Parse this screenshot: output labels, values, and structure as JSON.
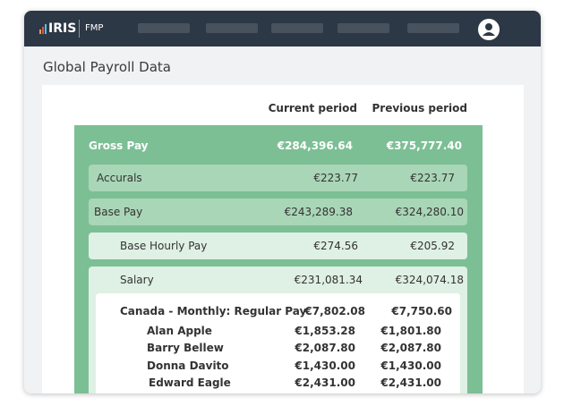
{
  "header": {
    "logo": "IRIS",
    "product": "FMP"
  },
  "page": {
    "title": "Global Payroll Data"
  },
  "table": {
    "columns": [
      "Current period",
      "Previous period"
    ],
    "rows": [
      {
        "label": "Gross Pay",
        "current": "€284,396.64",
        "previous": "€375,777.40"
      },
      {
        "label": "Accurals",
        "current": "€223.77",
        "previous": "€223.77"
      },
      {
        "label": "Base Pay",
        "current": "€243,289.38",
        "previous": "€324,280.10"
      },
      {
        "label": "Base Hourly Pay",
        "current": "€274.56",
        "previous": "€205.92"
      },
      {
        "label": "Salary",
        "current": "€231,081.34",
        "previous": "€324,074.18"
      },
      {
        "label": "Canada - Monthly: Regular Pay",
        "current": "€7,802.08",
        "previous": "€7,750.60"
      },
      {
        "label": "Alan Apple",
        "current": "€1,853.28",
        "previous": "€1,801.80"
      },
      {
        "label": "Barry Bellew",
        "current": "€2,087.80",
        "previous": "€2,087.80"
      },
      {
        "label": "Donna Davito",
        "current": "€1,430.00",
        "previous": "€1,430.00"
      },
      {
        "label": "Edward Eagle",
        "current": "€2,431.00",
        "previous": "€2,431.00"
      }
    ]
  }
}
